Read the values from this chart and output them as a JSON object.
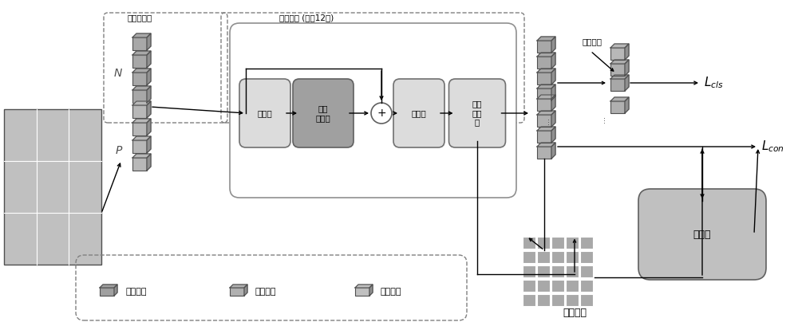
{
  "fig_width": 10.0,
  "fig_height": 4.04,
  "bg_color": "#ffffff",
  "gray_dark": "#808080",
  "gray_mid": "#a0a0a0",
  "gray_light": "#c8c8c8",
  "gray_lighter": "#d8d8d8",
  "gray_lightest": "#e8e8e8",
  "block_gray": "#b0b0b0",
  "dark_gray_box": "#909090",
  "title_encoder": "编码和嵌入",
  "title_transformer": "转换器块 (重复12次)",
  "label_norm1": "归一化",
  "label_attn": "多头\n注意力",
  "label_norm2": "归一化",
  "label_mlp": "多层\n感知\n机",
  "label_avgpool": "平均池化",
  "label_memory": "记忆库",
  "label_N": "N",
  "label_P": "P",
  "label_attn_map": "注意力图",
  "label_lcls": "L_{cls}",
  "label_lcon": "L_{con}",
  "legend_pos": "位置编码",
  "legend_patch": "分块编码",
  "legend_embed": "位置嵌入"
}
